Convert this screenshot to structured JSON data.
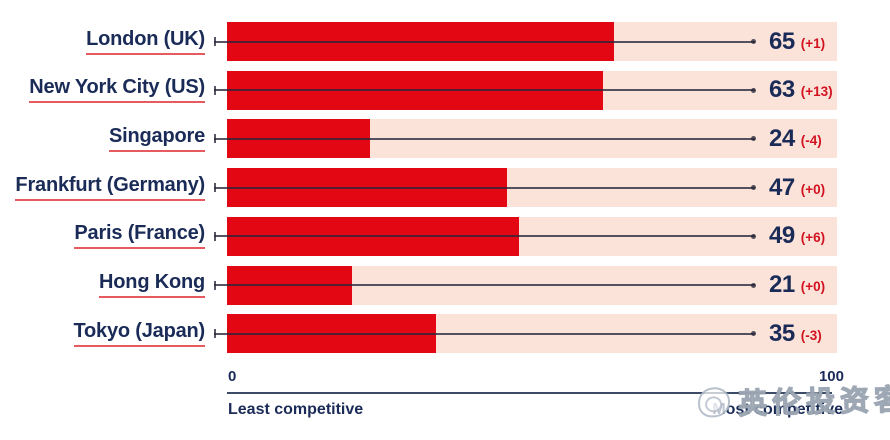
{
  "chart_data": {
    "type": "bar",
    "orientation": "horizontal",
    "categories": [
      "London (UK)",
      "New York City (US)",
      "Singapore",
      "Frankfurt (Germany)",
      "Paris (France)",
      "Hong Kong",
      "Tokyo (Japan)"
    ],
    "values": [
      65,
      63,
      24,
      47,
      49,
      21,
      35
    ],
    "changes": [
      "(+1)",
      "(+13)",
      "(-4)",
      "(+0)",
      "(+6)",
      "(+0)",
      "(-3)"
    ],
    "xlim": [
      0,
      100
    ],
    "axis": {
      "min_label": "0",
      "max_label": "100",
      "min_caption": "Least competitive",
      "max_caption": "Most competitive"
    },
    "legend": "none",
    "grid": false,
    "colors": {
      "bar": "#e30613",
      "track": "#fbe3d9",
      "navy": "#1a2b57",
      "change": "#d3121f",
      "underline": "#e65a60",
      "leader": "rgba(38,38,58,0.78)"
    }
  },
  "watermark": {
    "text": "英伦投资客",
    "logo": "doodle-circle-logo-icon"
  }
}
